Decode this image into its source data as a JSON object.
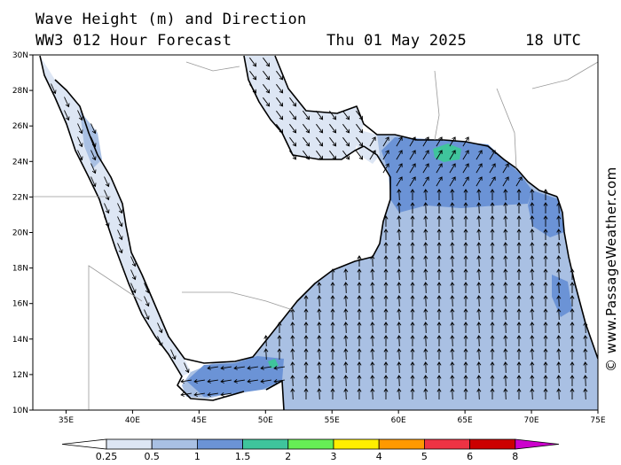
{
  "header": {
    "title": "Wave Height (m) and Direction",
    "subtitle": "WW3 012 Hour Forecast",
    "date": "Thu 01 May 2025",
    "time": "18 UTC"
  },
  "credit": "© www.PassageWeather.com",
  "axes": {
    "lon_ticks": [
      "35E",
      "40E",
      "45E",
      "50E",
      "55E",
      "60E",
      "65E",
      "70E",
      "75E"
    ],
    "lat_ticks": [
      "10N",
      "12N",
      "14N",
      "16N",
      "18N",
      "20N",
      "22N",
      "24N",
      "26N",
      "28N",
      "30N"
    ]
  },
  "colorbar": {
    "labels": [
      "0.25",
      "0.5",
      "1",
      "1.5",
      "2",
      "3",
      "4",
      "5",
      "6",
      "8"
    ],
    "colors": [
      "#ffffff",
      "#dde6f4",
      "#a9c0e3",
      "#6b93d6",
      "#3fc49c",
      "#66ee55",
      "#ffee00",
      "#ff9900",
      "#ee3344",
      "#cc0000",
      "#cc00cc"
    ]
  },
  "colors": {
    "sea_low": "#dde6f4",
    "sea_mid": "#a9c0e3",
    "sea_high": "#6b93d6",
    "sea_peak": "#3fc49c",
    "land": "#ffffff",
    "coast": "#000000",
    "border": "#999999"
  }
}
